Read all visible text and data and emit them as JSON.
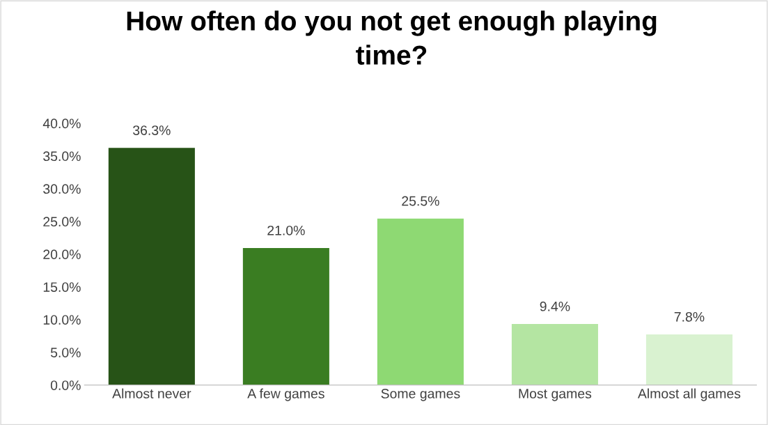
{
  "chart_data": {
    "type": "bar",
    "title": "How often do you not get enough playing\ntime?",
    "categories": [
      "Almost never",
      "A few games",
      "Some games",
      "Most games",
      "Almost all games"
    ],
    "values": [
      36.3,
      21.0,
      25.5,
      9.4,
      7.8
    ],
    "colors": [
      "#275317",
      "#3a7d22",
      "#8ed973",
      "#b4e5a2",
      "#d9f2d0"
    ],
    "value_labels": [
      "36.3%",
      "21.0%",
      "25.5%",
      "9.4%",
      "7.8%"
    ],
    "ylim": [
      0,
      40
    ],
    "yticks": [
      {
        "value": 0,
        "label": "0.0%"
      },
      {
        "value": 5,
        "label": "5.0%"
      },
      {
        "value": 10,
        "label": "10.0%"
      },
      {
        "value": 15,
        "label": "15.0%"
      },
      {
        "value": 20,
        "label": "20.0%"
      },
      {
        "value": 25,
        "label": "25.0%"
      },
      {
        "value": 30,
        "label": "30.0%"
      },
      {
        "value": 35,
        "label": "35.0%"
      },
      {
        "value": 40,
        "label": "40.0%"
      }
    ],
    "grid": false
  }
}
